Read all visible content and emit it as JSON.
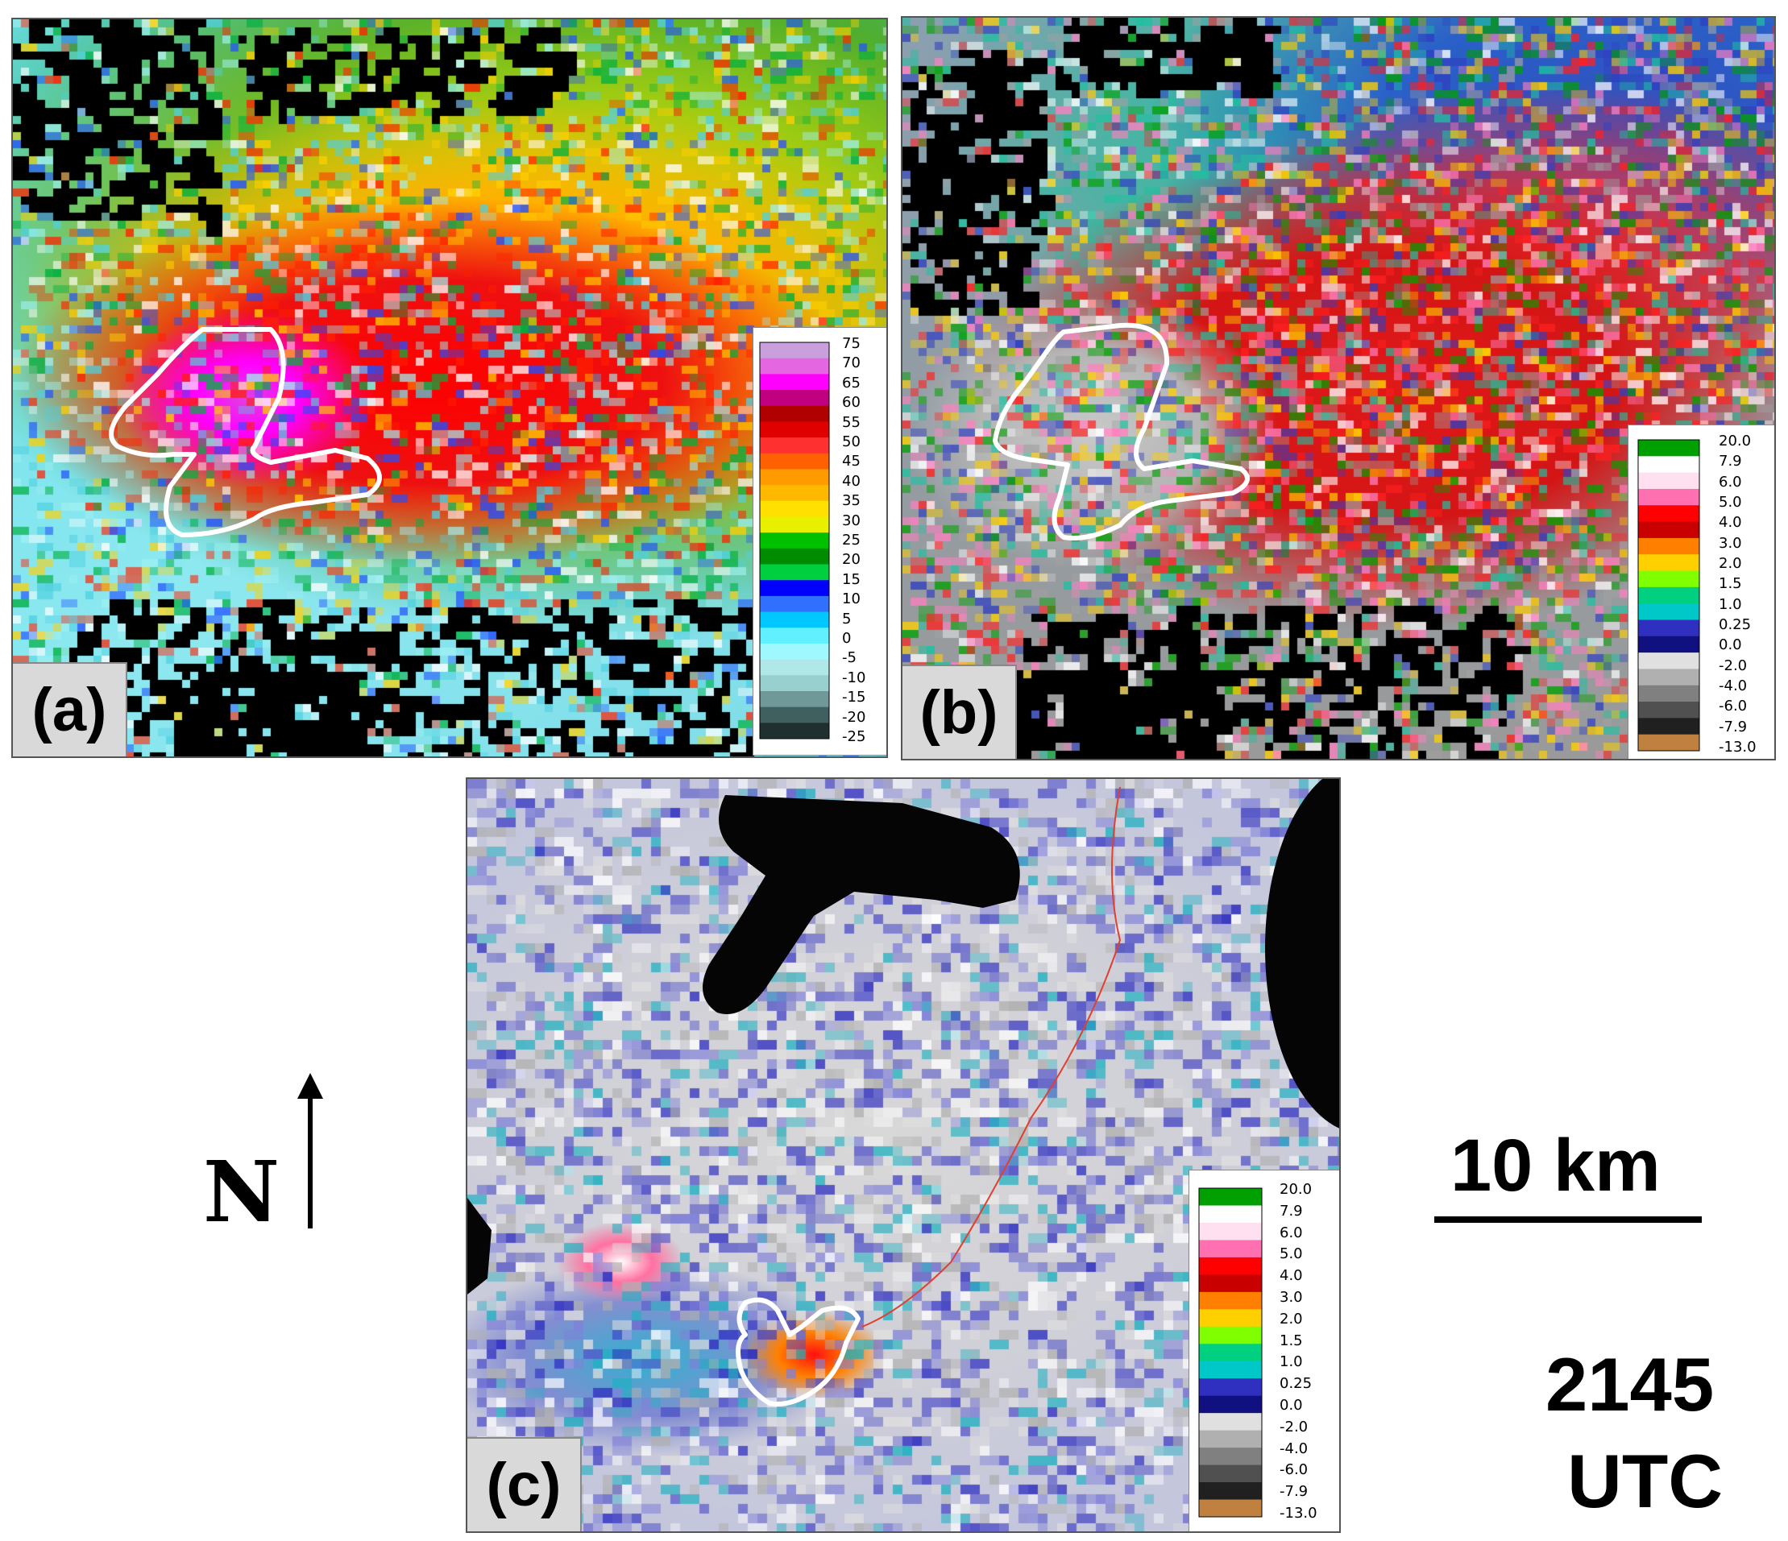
{
  "panels": [
    {
      "label": "(a)",
      "legend_colors": [
        "#c9a0dc",
        "#e466e0",
        "#ff00ff",
        "#c00080",
        "#b00000",
        "#e00000",
        "#ff3030",
        "#ff6000",
        "#ff9a00",
        "#ffb800",
        "#ffe000",
        "#e8f000",
        "#00c000",
        "#008c00",
        "#00d040",
        "#0000ff",
        "#3070ff",
        "#00c8ff",
        "#60f0ff",
        "#a0f8ff",
        "#b0e8e8",
        "#98d0d0",
        "#709898",
        "#406060",
        "#203030"
      ],
      "legend_labels": [
        "75",
        "70",
        "65",
        "60",
        "55",
        "50",
        "45",
        "40",
        "35",
        "30",
        "25",
        "20",
        "15",
        "10",
        "5",
        "0",
        "-5",
        "-10",
        "-15",
        "-20",
        "-25"
      ]
    },
    {
      "label": "(b)",
      "legend_colors": [
        "#00a000",
        "#ffffff",
        "#ffe0f0",
        "#ff70b0",
        "#ff0000",
        "#c80000",
        "#ff8000",
        "#ffd000",
        "#80ff00",
        "#00d080",
        "#00c8c8",
        "#3030c0",
        "#101080",
        "#e0e0e0",
        "#b0b0b0",
        "#808080",
        "#505050",
        "#202020",
        "#c08040"
      ],
      "legend_labels": [
        "20.0",
        "7.9",
        "6.0",
        "5.0",
        "4.0",
        "3.0",
        "2.0",
        "1.5",
        "1.0",
        "0.25",
        "0.0",
        "-2.0",
        "-4.0",
        "-6.0",
        "-7.9",
        "-13.0"
      ]
    },
    {
      "label": "(c)",
      "legend_colors": [
        "#00a000",
        "#ffffff",
        "#ffe0f0",
        "#ff70b0",
        "#ff0000",
        "#c80000",
        "#ff8000",
        "#ffd000",
        "#80ff00",
        "#00d080",
        "#00c8c8",
        "#3030c0",
        "#101080",
        "#e0e0e0",
        "#b0b0b0",
        "#808080",
        "#505050",
        "#202020",
        "#c08040"
      ],
      "legend_labels": [
        "20.0",
        "7.9",
        "6.0",
        "5.0",
        "4.0",
        "3.0",
        "2.0",
        "1.5",
        "1.0",
        "0.25",
        "0.0",
        "-2.0",
        "-4.0",
        "-6.0",
        "-7.9",
        "-13.0"
      ]
    }
  ],
  "north_label": "N",
  "scale_label": "10 km",
  "time_line1": "2145",
  "time_line2": "UTC",
  "outline_color": "#ffffff"
}
